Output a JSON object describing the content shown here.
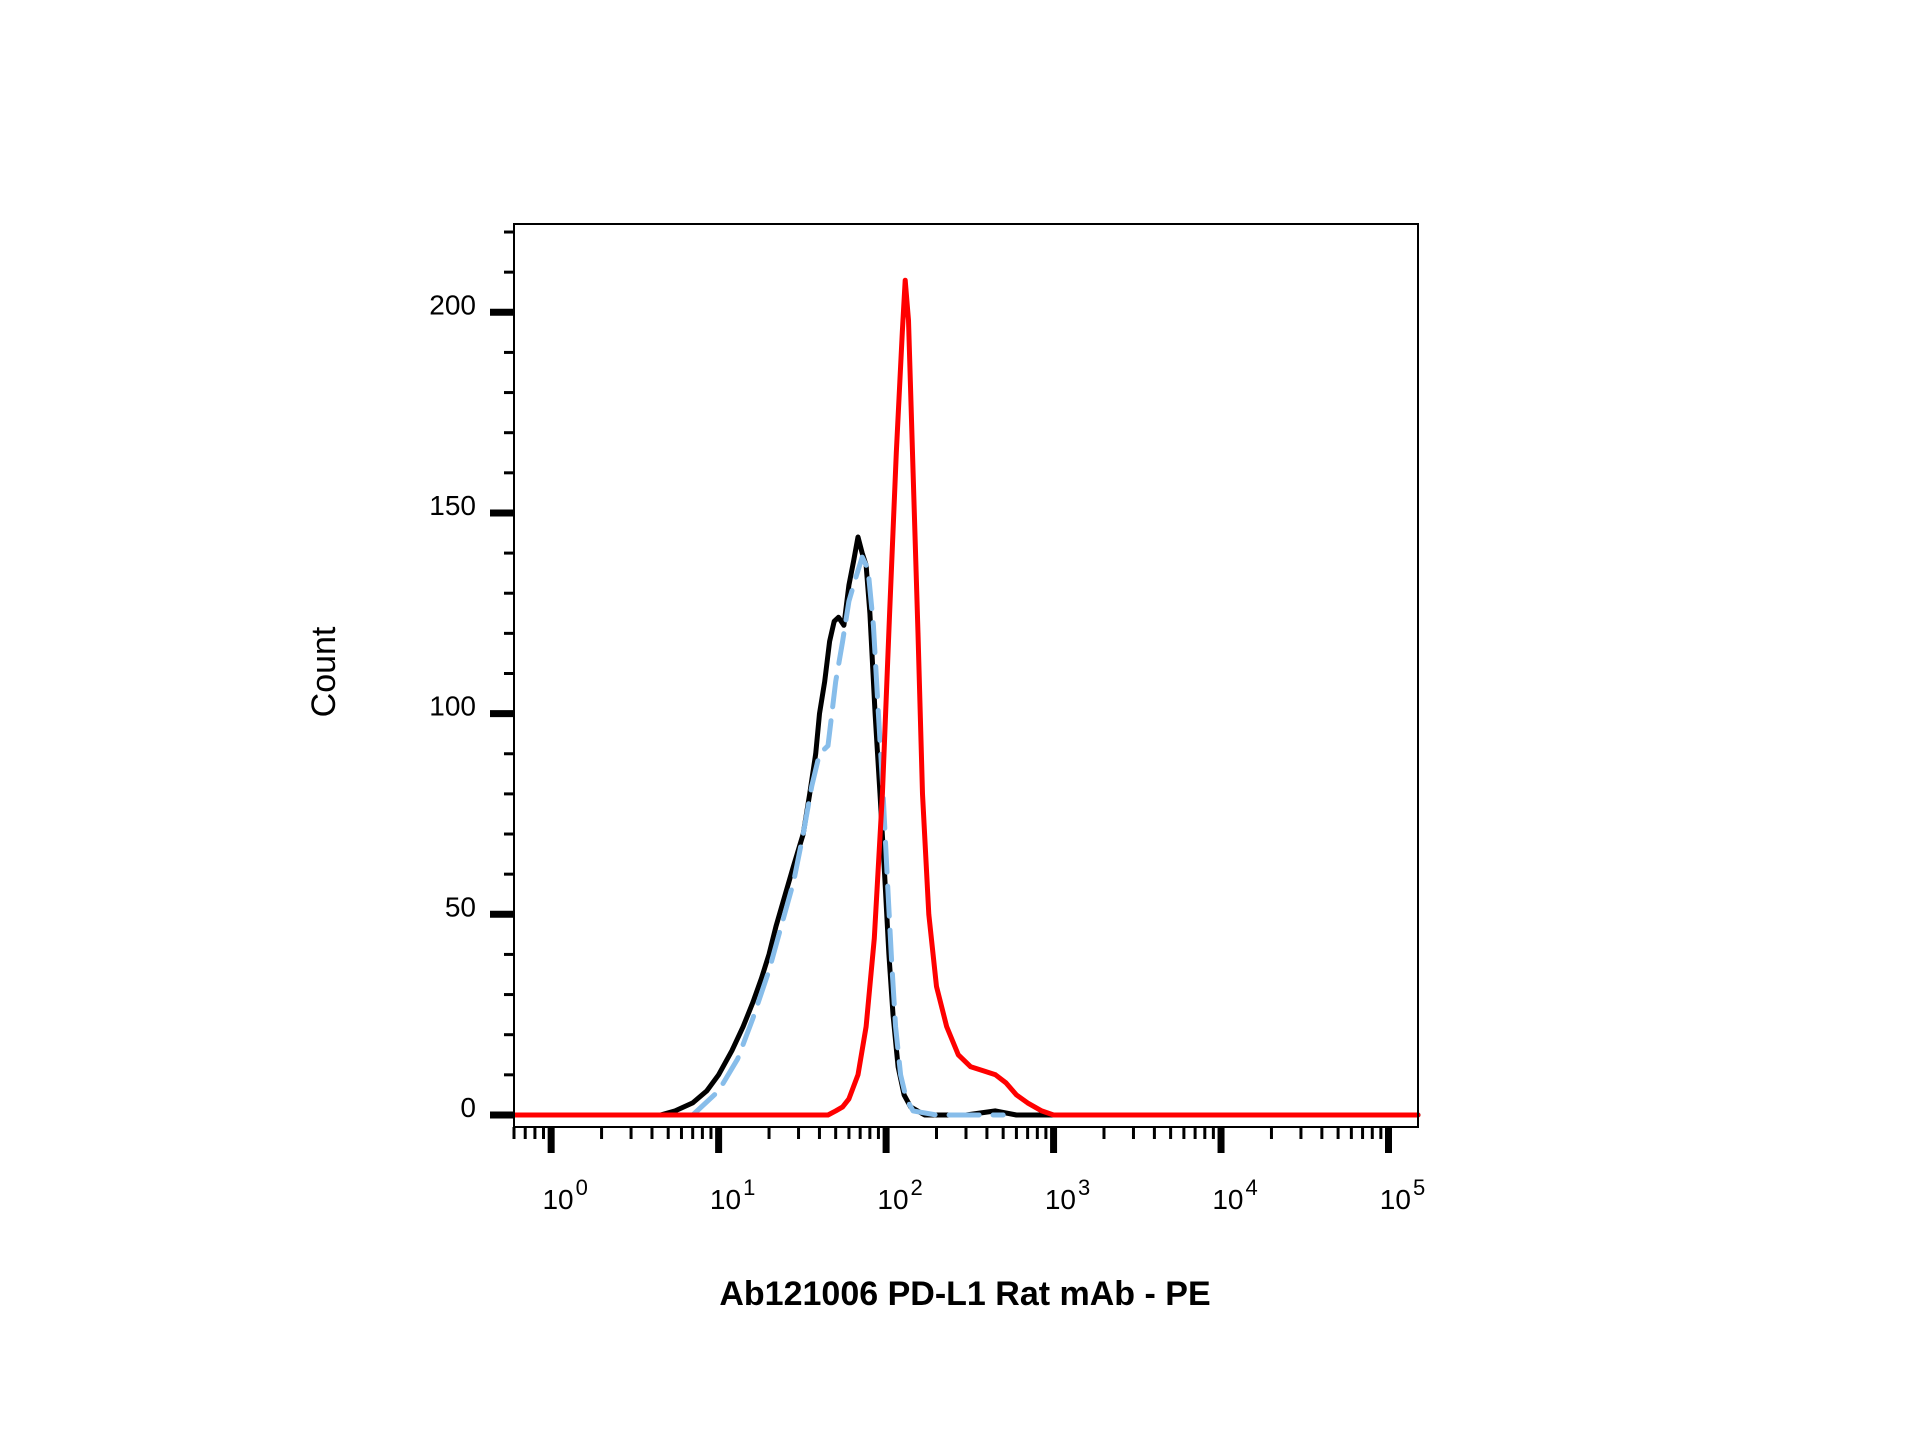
{
  "chart_data": {
    "type": "line",
    "title": "",
    "xlabel": "Ab121006 PD-L1 Rat mAb - PE",
    "ylabel": "Count",
    "x_scale": "log",
    "xlim": [
      0.6,
      150000
    ],
    "ylim": [
      -3,
      222
    ],
    "x_tick_labels": [
      {
        "base": "10",
        "exp": "0"
      },
      {
        "base": "10",
        "exp": "1"
      },
      {
        "base": "10",
        "exp": "2"
      },
      {
        "base": "10",
        "exp": "3"
      },
      {
        "base": "10",
        "exp": "4"
      },
      {
        "base": "10",
        "exp": "5"
      }
    ],
    "x_ticks": [
      1,
      10,
      100,
      1000,
      10000,
      100000
    ],
    "y_ticks": [
      0,
      50,
      100,
      150,
      200
    ],
    "y_tick_labels": [
      "0",
      "50",
      "100",
      "150",
      "200"
    ],
    "grid": false,
    "legend": "none",
    "series": [
      {
        "color": "#000000",
        "style": "solid",
        "points": [
          [
            0.6,
            0
          ],
          [
            4.5,
            0
          ],
          [
            5.5,
            1
          ],
          [
            7,
            3
          ],
          [
            8.5,
            6
          ],
          [
            10,
            10
          ],
          [
            12,
            16
          ],
          [
            14,
            22
          ],
          [
            16,
            28
          ],
          [
            18,
            34
          ],
          [
            20,
            40
          ],
          [
            22,
            47
          ],
          [
            25,
            55
          ],
          [
            28,
            62
          ],
          [
            32,
            70
          ],
          [
            35,
            80
          ],
          [
            38,
            90
          ],
          [
            40,
            100
          ],
          [
            43,
            108
          ],
          [
            46,
            118
          ],
          [
            49,
            123
          ],
          [
            52,
            124
          ],
          [
            56,
            122
          ],
          [
            60,
            132
          ],
          [
            64,
            138
          ],
          [
            68,
            144
          ],
          [
            72,
            140
          ],
          [
            76,
            137
          ],
          [
            80,
            125
          ],
          [
            86,
            100
          ],
          [
            92,
            80
          ],
          [
            98,
            60
          ],
          [
            104,
            40
          ],
          [
            110,
            25
          ],
          [
            118,
            12
          ],
          [
            128,
            5
          ],
          [
            140,
            2
          ],
          [
            170,
            0
          ],
          [
            300,
            0
          ],
          [
            450,
            1
          ],
          [
            600,
            0
          ],
          [
            150000,
            0
          ]
        ]
      },
      {
        "color": "#87bdea",
        "style": "dashed",
        "points": [
          [
            7,
            0
          ],
          [
            10,
            6
          ],
          [
            13,
            14
          ],
          [
            16,
            24
          ],
          [
            20,
            36
          ],
          [
            24,
            48
          ],
          [
            28,
            58
          ],
          [
            32,
            70
          ],
          [
            36,
            82
          ],
          [
            40,
            90
          ],
          [
            45,
            92
          ],
          [
            50,
            108
          ],
          [
            55,
            118
          ],
          [
            60,
            128
          ],
          [
            66,
            134
          ],
          [
            72,
            139
          ],
          [
            78,
            136
          ],
          [
            84,
            122
          ],
          [
            90,
            100
          ],
          [
            96,
            80
          ],
          [
            102,
            58
          ],
          [
            108,
            38
          ],
          [
            114,
            22
          ],
          [
            122,
            10
          ],
          [
            132,
            4
          ],
          [
            145,
            1
          ],
          [
            200,
            0
          ],
          [
            500,
            0
          ]
        ]
      },
      {
        "color": "#ff0000",
        "style": "solid",
        "points": [
          [
            0.6,
            0
          ],
          [
            45,
            0
          ],
          [
            50,
            1
          ],
          [
            55,
            2
          ],
          [
            60,
            4
          ],
          [
            68,
            10
          ],
          [
            76,
            22
          ],
          [
            85,
            44
          ],
          [
            95,
            80
          ],
          [
            105,
            125
          ],
          [
            115,
            165
          ],
          [
            125,
            195
          ],
          [
            130,
            208
          ],
          [
            136,
            198
          ],
          [
            145,
            160
          ],
          [
            155,
            120
          ],
          [
            165,
            80
          ],
          [
            180,
            50
          ],
          [
            200,
            32
          ],
          [
            230,
            22
          ],
          [
            270,
            15
          ],
          [
            320,
            12
          ],
          [
            380,
            11
          ],
          [
            450,
            10
          ],
          [
            520,
            8
          ],
          [
            600,
            5
          ],
          [
            700,
            3
          ],
          [
            850,
            1
          ],
          [
            1000,
            0
          ],
          [
            150000,
            0
          ]
        ]
      }
    ]
  }
}
